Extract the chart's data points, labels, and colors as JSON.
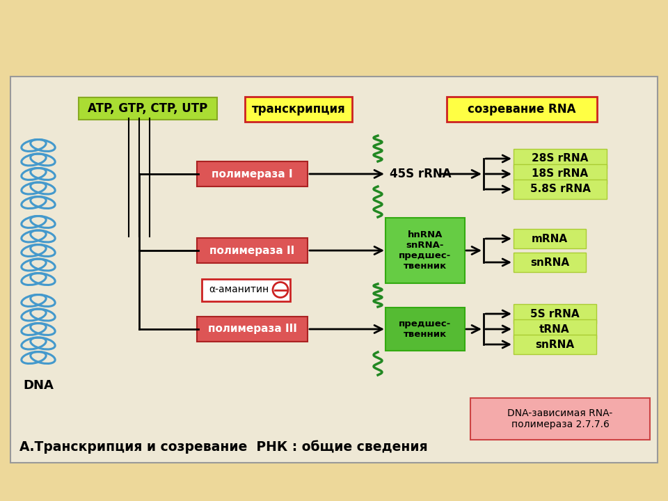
{
  "bg_top_color": "#EDD89A",
  "bg_main_color": "#EEE8D5",
  "title_text": "А.Транскрипция и созревание  РНК : общие сведения",
  "top_label": "ATP, GTP, CTP, UTP",
  "transcription_label": "транскрипция",
  "maturation_label": "созревание RNA",
  "dna_label": "DNA",
  "polymerase_labels": [
    "полимераза I",
    "полимераза II",
    "полимераза III"
  ],
  "inhibitor_label": "α-аманитин",
  "intermediate_label_0": "45S rRNA",
  "intermediate_label_1": "hnRNA\nsnRNA-\nпредшес-\nтвенник",
  "intermediate_label_2": "предшес-\nтвенник",
  "final_labels_1": [
    "28S rRNA",
    "18S rRNA",
    "5.8S rRNA"
  ],
  "final_labels_2": [
    "mRNA",
    "snRNA"
  ],
  "final_labels_3": [
    "5S rRNA",
    "tRNA",
    "snRNA"
  ],
  "dna_box_label": "DNA-зависимая RNA-\nполимераза 2.7.7.6",
  "poly_box_color": "#DD5555",
  "poly_box_edge": "#AA2222",
  "inhibitor_bg": "#FFFFFF",
  "inhibitor_edge": "#CC2222",
  "green_box_color_1": "#66CC44",
  "green_box_color_2": "#55BB33",
  "green_box_edge": "#33AA11",
  "transcript_bg": "#FFFF44",
  "transcript_edge": "#CC2222",
  "matur_bg": "#FFFF44",
  "matur_edge": "#CC2222",
  "atp_bg": "#AADD33",
  "atp_edge": "#88AA22",
  "final_bg": "#CCEE66",
  "final_edge": "#AACC33",
  "dna_box_bg": "#F4AAAA",
  "dna_box_edge": "#CC4444",
  "wavy_color": "#228822",
  "arrow_color": "black",
  "line_color": "black",
  "dna_color": "#4499CC"
}
